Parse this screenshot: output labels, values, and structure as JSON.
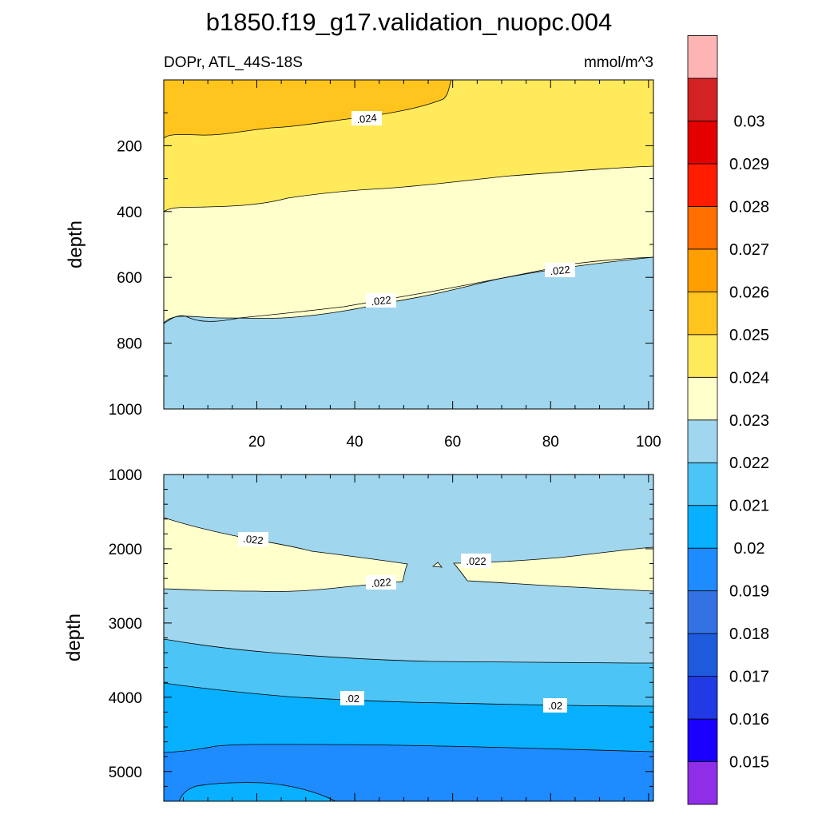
{
  "title": "b1850.f19_g17.validation_nuopc.004",
  "variable_label": "DOPr, ATL_44S-18S",
  "units": "mmol/m^3",
  "colorbar": {
    "colors": [
      "#a0ffa0",
      "#8f2de7",
      "#1b00ff",
      "#203ae5",
      "#1e5bdc",
      "#3472e4",
      "#1e8bff",
      "#08b0ff",
      "#4cc4f5",
      "#a0d6ee",
      "#ffffcc",
      "#ffea5b",
      "#ffc41e",
      "#ff9f00",
      "#ff6f00",
      "#ff1d00",
      "#e50000",
      "#d42123",
      "#ffb4b4"
    ],
    "labels": [
      "0.015",
      "0.016",
      "0.017",
      "0.018",
      "0.019",
      "0.02",
      "0.021",
      "0.022",
      "0.023",
      "0.024",
      "0.025",
      "0.026",
      "0.027",
      "0.028",
      "0.029",
      "0.03"
    ]
  },
  "chart_data": [
    {
      "type": "contour",
      "panel": "upper",
      "ylabel": "depth",
      "xlabel": "",
      "xlim": [
        1,
        101
      ],
      "ylim": [
        1000,
        0
      ],
      "x_ticks": [
        "20",
        "40",
        "60",
        "80",
        "100"
      ],
      "y_ticks": [
        "200",
        "400",
        "600",
        "800",
        "1000"
      ],
      "fill_bands": [
        {
          "range": [
            0.024,
            0.025
          ],
          "color": "#ffc41e",
          "region": "top-left, surface to ~170 m near x=1, pinching out near x=60"
        },
        {
          "range": [
            0.023,
            0.024
          ],
          "color": "#ffea5b",
          "boundary_bottom_depth": [
            [
              1,
              400
            ],
            [
              50,
              330
            ],
            [
              101,
              265
            ]
          ]
        },
        {
          "range": [
            0.022,
            0.023
          ],
          "color": "#ffffcc",
          "boundary_bottom_depth": [
            [
              1,
              745
            ],
            [
              50,
              670
            ],
            [
              101,
              540
            ]
          ]
        },
        {
          "range": [
            0.021,
            0.022
          ],
          "color": "#a0d6ee",
          "region": "below 0.022 contour to 1000 m"
        }
      ],
      "contour_labels": [
        ".024",
        ".022",
        ".022"
      ]
    },
    {
      "type": "contour",
      "panel": "lower",
      "ylabel": "depth",
      "xlabel": "",
      "xlim": [
        1,
        101
      ],
      "ylim": [
        1000,
        5400
      ],
      "y_ticks": [
        "1000",
        "2000",
        "3000",
        "4000",
        "5000"
      ],
      "fill_bands": [
        {
          "range": [
            0.021,
            0.022
          ],
          "color": "#a0d6ee",
          "region": "1000–~3200 m background"
        },
        {
          "range": [
            0.022,
            0.023
          ],
          "color": "#ffffcc",
          "region": "wedges ~1600–2550 m on left and ~1980–2550 m on right, split near x=55"
        },
        {
          "range": [
            0.02,
            0.021
          ],
          "color": "#4cc4f5",
          "boundary_bottom_depth": [
            [
              1,
              3770
            ],
            [
              50,
              3960
            ],
            [
              101,
              4100
            ]
          ]
        },
        {
          "range": [
            0.019,
            0.02
          ],
          "color": "#08b0ff",
          "boundary_bottom_depth": [
            [
              1,
              4720
            ],
            [
              50,
              4640
            ],
            [
              101,
              4720
            ]
          ]
        },
        {
          "range": [
            0.018,
            0.019
          ],
          "color": "#1e8bff",
          "region": "~4700 m to bottom"
        },
        {
          "range": [
            0.019,
            0.02
          ],
          "color": "#08b0ff",
          "region": "small pocket near bottom x≈5–35"
        }
      ],
      "contour_labels": [
        ".022",
        ".022",
        ".022",
        ".02",
        ".02"
      ]
    }
  ]
}
